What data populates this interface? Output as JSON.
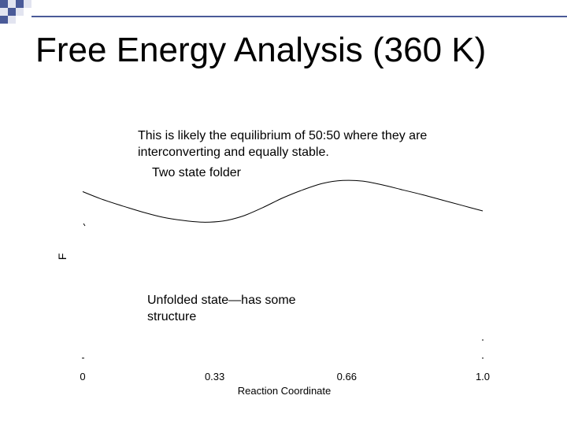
{
  "slide": {
    "title": "Free Energy Analysis (360 K)"
  },
  "annotations": {
    "equilibrium": "This is likely the equilibrium of 50:50 where they are interconverting and equally stable.",
    "two_state": "Two state folder",
    "unfolded": "Unfolded state—has some structure"
  },
  "theme": {
    "accent": "#4a5a98",
    "accent_light": "#e2e4f0",
    "curve_color": "#000000"
  },
  "chart_data": {
    "type": "line",
    "xlabel": "Reaction Coordinate",
    "ylabel": "F",
    "xlim": [
      0,
      1.0
    ],
    "ylim": [
      0,
      1
    ],
    "x_ticks": [
      {
        "value": 0,
        "label": "0"
      },
      {
        "value": 0.33,
        "label": "0.33"
      },
      {
        "value": 0.66,
        "label": "0.66"
      },
      {
        "value": 1.0,
        "label": "1.0"
      }
    ],
    "grid": false,
    "legend": "none",
    "series": [
      {
        "x": [
          0.0,
          0.05,
          0.1,
          0.15,
          0.2,
          0.25,
          0.3,
          0.35,
          0.4,
          0.45,
          0.5,
          0.55,
          0.6,
          0.65,
          0.7,
          0.75,
          0.8,
          0.85,
          0.9,
          0.95,
          1.0
        ],
        "y": [
          0.742,
          0.707,
          0.678,
          0.651,
          0.628,
          0.614,
          0.606,
          0.611,
          0.633,
          0.671,
          0.714,
          0.75,
          0.779,
          0.792,
          0.789,
          0.772,
          0.75,
          0.728,
          0.704,
          0.68,
          0.656
        ]
      }
    ]
  }
}
